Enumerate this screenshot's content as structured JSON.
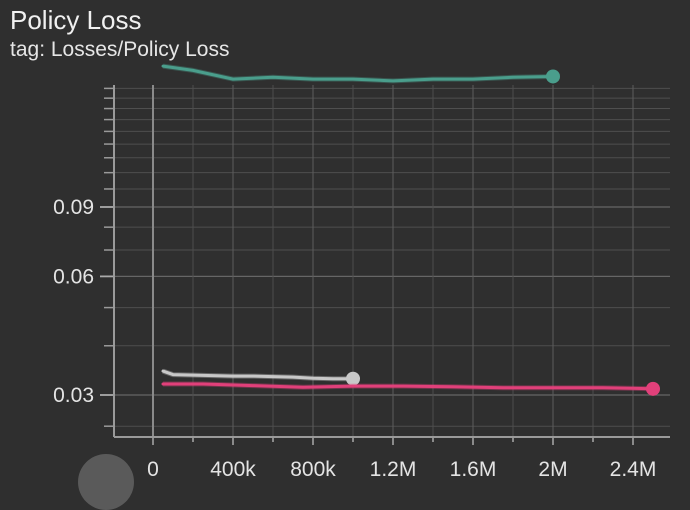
{
  "card": {
    "title": "Policy Loss",
    "subtitle": "tag: Losses/Policy Loss"
  },
  "chart_data": {
    "type": "line",
    "title": "Policy Loss",
    "xlabel": "",
    "ylabel": "",
    "y_scale": "log",
    "xlim": [
      -200000,
      2600000
    ],
    "ylim": [
      0.02,
      0.35
    ],
    "x_tick_labels": [
      "0",
      "400k",
      "800k",
      "1.2M",
      "1.6M",
      "2M",
      "2.4M"
    ],
    "x_tick_values": [
      0,
      400000,
      800000,
      1200000,
      1600000,
      2000000,
      2400000
    ],
    "y_tick_labels": [
      "0.03",
      "0.06",
      "0.09"
    ],
    "y_tick_values": [
      0.03,
      0.06,
      0.09
    ],
    "grid": true,
    "legend": "none",
    "series": [
      {
        "color": "#4a9e8c",
        "x": [
          50000,
          200000,
          400000,
          600000,
          800000,
          1000000,
          1200000,
          1400000,
          1600000,
          1800000,
          2000000
        ],
        "y": [
          0.205,
          0.2,
          0.19,
          0.192,
          0.19,
          0.19,
          0.188,
          0.19,
          0.19,
          0.192,
          0.193
        ]
      },
      {
        "color": "#c8c8c8",
        "x": [
          50000,
          100000,
          200000,
          300000,
          400000,
          500000,
          600000,
          700000,
          800000,
          900000,
          1000000
        ],
        "y": [
          0.0345,
          0.0338,
          0.0337,
          0.0336,
          0.0335,
          0.0335,
          0.0334,
          0.0333,
          0.0331,
          0.033,
          0.033
        ]
      },
      {
        "color": "#e1407a",
        "x": [
          50000,
          250000,
          500000,
          750000,
          1000000,
          1250000,
          1500000,
          1750000,
          2000000,
          2250000,
          2500000
        ],
        "y": [
          0.032,
          0.032,
          0.0317,
          0.0314,
          0.0316,
          0.0316,
          0.0315,
          0.0313,
          0.0313,
          0.0313,
          0.0311
        ]
      }
    ]
  }
}
